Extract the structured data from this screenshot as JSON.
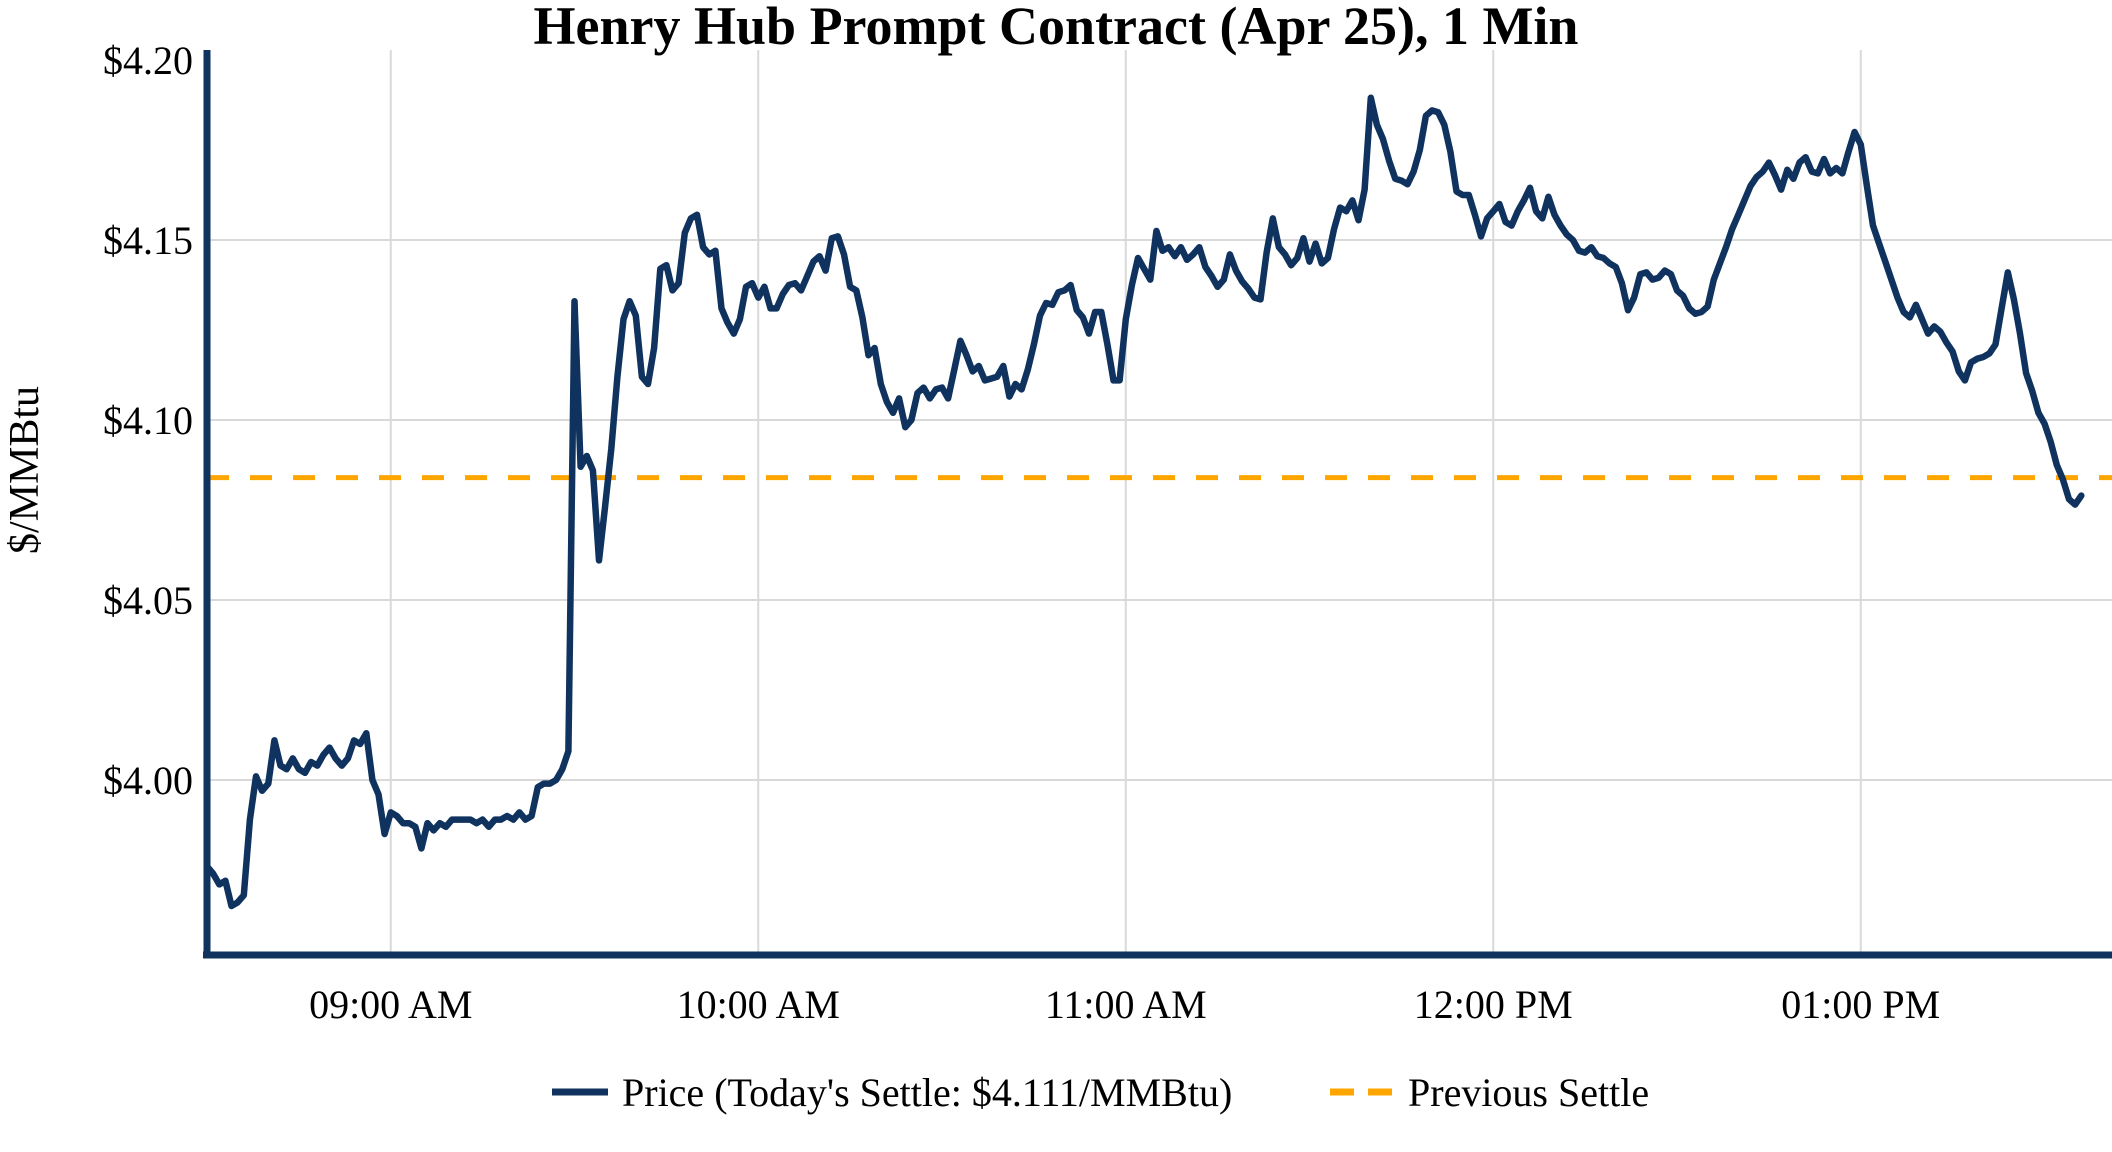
{
  "chart": {
    "title": "Henry Hub Prompt Contract (Apr 25), 1 Min",
    "y_axis_label": "$/MMBtu",
    "legend": {
      "price_label": "Price (Today's Settle: $4.111/MMBtu)",
      "previous_settle_label": "Previous Settle"
    },
    "colors": {
      "price": "#0f335e",
      "previous_settle": "#FFA500",
      "grid": "#d9d9d9"
    }
  },
  "chart_data": {
    "type": "line",
    "title": "Henry Hub Prompt Contract (Apr 25), 1 Min",
    "xlabel": "",
    "ylabel": "$/MMBtu",
    "ylim": [
      3.952,
      4.2
    ],
    "grid": true,
    "legend_position": "bottom-center",
    "x_start_time": "08:30 AM",
    "x_interval_minutes": 1,
    "x_ticks": [
      {
        "label": "09:00 AM",
        "minute_offset": 30
      },
      {
        "label": "10:00 AM",
        "minute_offset": 90
      },
      {
        "label": "11:00 AM",
        "minute_offset": 150
      },
      {
        "label": "12:00 PM",
        "minute_offset": 210
      },
      {
        "label": "01:00 PM",
        "minute_offset": 270
      }
    ],
    "y_ticks": [
      {
        "label": "$4.20",
        "value": 4.2
      },
      {
        "label": "$4.15",
        "value": 4.15
      },
      {
        "label": "$4.10",
        "value": 4.1
      },
      {
        "label": "$4.05",
        "value": 4.05
      },
      {
        "label": "$4.00",
        "value": 4.0
      }
    ],
    "today_settle": 4.111,
    "previous_settle": 4.084,
    "series": [
      {
        "name": "Price (Today's Settle: $4.111/MMBtu)",
        "type": "line",
        "color": "#0f335e",
        "values": [
          3.976,
          3.974,
          3.971,
          3.972,
          3.965,
          3.966,
          3.968,
          3.989,
          4.001,
          3.997,
          3.999,
          4.011,
          4.004,
          4.003,
          4.006,
          4.003,
          4.002,
          4.005,
          4.004,
          4.007,
          4.009,
          4.006,
          4.004,
          4.006,
          4.011,
          4.01,
          4.013,
          4.0,
          3.996,
          3.985,
          3.991,
          3.99,
          3.988,
          3.988,
          3.987,
          3.981,
          3.988,
          3.986,
          3.988,
          3.987,
          3.989,
          3.989,
          3.989,
          3.989,
          3.988,
          3.989,
          3.987,
          3.989,
          3.989,
          3.99,
          3.989,
          3.991,
          3.989,
          3.99,
          3.998,
          3.999,
          3.999,
          4.0,
          4.003,
          4.008,
          4.133,
          4.087,
          4.09,
          4.086,
          4.061,
          4.076,
          4.092,
          4.112,
          4.128,
          4.133,
          4.129,
          4.112,
          4.11,
          4.12,
          4.142,
          4.143,
          4.136,
          4.138,
          4.152,
          4.156,
          4.157,
          4.148,
          4.146,
          4.147,
          4.131,
          4.127,
          4.124,
          4.128,
          4.137,
          4.138,
          4.134,
          4.137,
          4.131,
          4.131,
          4.135,
          4.1375,
          4.138,
          4.136,
          4.14,
          4.144,
          4.1455,
          4.1415,
          4.1505,
          4.151,
          4.146,
          4.137,
          4.136,
          4.1285,
          4.118,
          4.12,
          4.11,
          4.105,
          4.102,
          4.106,
          4.098,
          4.1,
          4.1075,
          4.109,
          4.106,
          4.1085,
          4.109,
          4.106,
          4.114,
          4.122,
          4.118,
          4.1135,
          4.115,
          4.111,
          4.1115,
          4.112,
          4.115,
          4.1065,
          4.11,
          4.1085,
          4.114,
          4.121,
          4.129,
          4.1325,
          4.132,
          4.1355,
          4.136,
          4.1375,
          4.1305,
          4.1285,
          4.124,
          4.13,
          4.13,
          4.121,
          4.111,
          4.111,
          4.128,
          4.1375,
          4.145,
          4.142,
          4.139,
          4.1525,
          4.147,
          4.148,
          4.1455,
          4.148,
          4.1445,
          4.146,
          4.148,
          4.1425,
          4.14,
          4.137,
          4.139,
          4.146,
          4.1415,
          4.1385,
          4.1365,
          4.134,
          4.1335,
          4.1465,
          4.156,
          4.148,
          4.146,
          4.143,
          4.145,
          4.1505,
          4.144,
          4.149,
          4.1435,
          4.145,
          4.153,
          4.159,
          4.158,
          4.161,
          4.1555,
          4.164,
          4.1895,
          4.182,
          4.178,
          4.172,
          4.167,
          4.1665,
          4.1655,
          4.169,
          4.175,
          4.1845,
          4.186,
          4.1855,
          4.182,
          4.1745,
          4.1635,
          4.1625,
          4.1625,
          4.157,
          4.151,
          4.156,
          4.158,
          4.16,
          4.155,
          4.154,
          4.158,
          4.161,
          4.1645,
          4.158,
          4.156,
          4.162,
          4.157,
          4.154,
          4.1515,
          4.15,
          4.147,
          4.1465,
          4.148,
          4.1455,
          4.145,
          4.1435,
          4.1425,
          4.138,
          4.1305,
          4.134,
          4.1405,
          4.141,
          4.139,
          4.1395,
          4.1415,
          4.1405,
          4.136,
          4.1345,
          4.131,
          4.1295,
          4.13,
          4.1315,
          4.139,
          4.1435,
          4.148,
          4.153,
          4.157,
          4.161,
          4.165,
          4.1675,
          4.169,
          4.1715,
          4.168,
          4.164,
          4.1695,
          4.167,
          4.1715,
          4.173,
          4.169,
          4.1685,
          4.1725,
          4.1685,
          4.17,
          4.1685,
          4.1745,
          4.18,
          4.1765,
          4.165,
          4.154,
          4.149,
          4.144,
          4.139,
          4.134,
          4.13,
          4.1285,
          4.132,
          4.128,
          4.124,
          4.126,
          4.1245,
          4.1215,
          4.119,
          4.1135,
          4.111,
          4.116,
          4.117,
          4.1175,
          4.1185,
          4.121,
          4.131,
          4.141,
          4.1335,
          4.124,
          4.113,
          4.108,
          4.102,
          4.099,
          4.094,
          4.0875,
          4.0835,
          4.078,
          4.0765,
          4.079
        ]
      },
      {
        "name": "Previous Settle",
        "type": "hline",
        "value": 4.084,
        "color": "#FFA500",
        "style": "dashed"
      }
    ]
  }
}
